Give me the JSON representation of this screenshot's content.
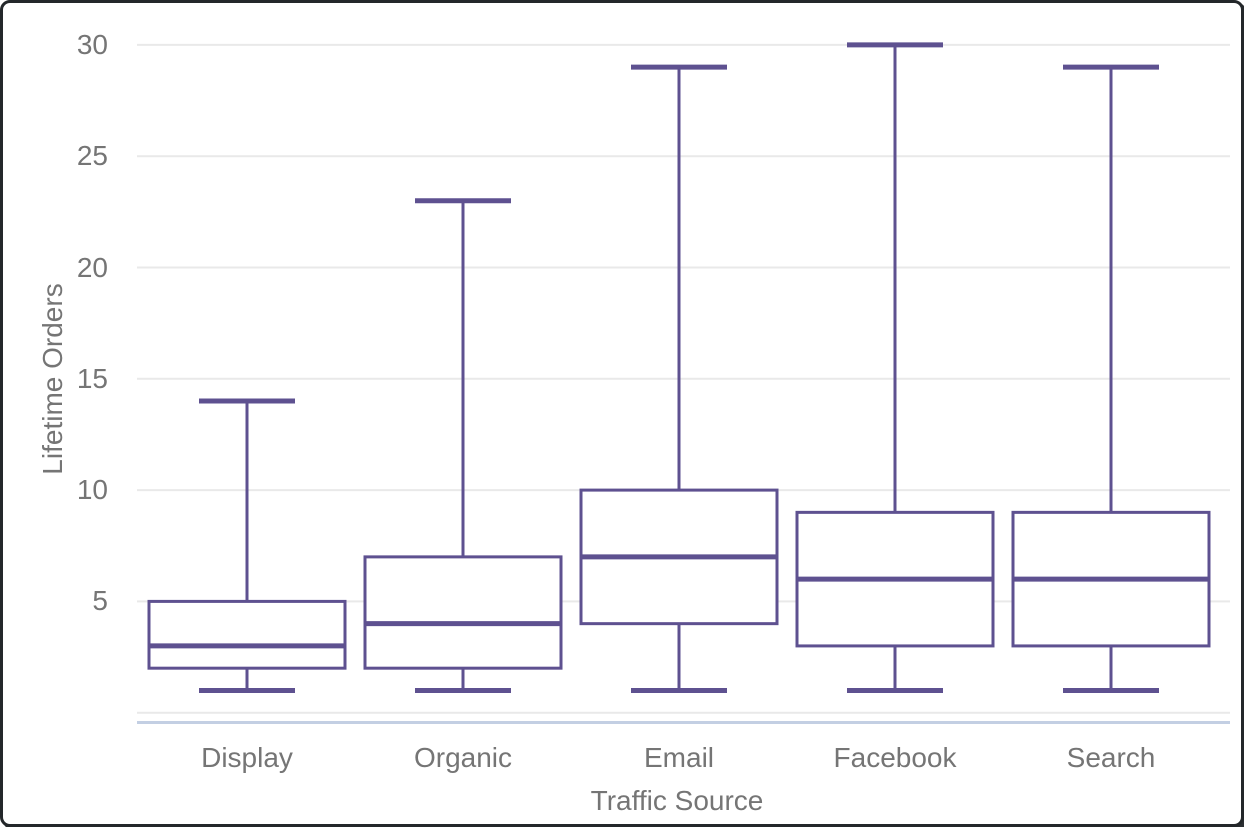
{
  "window": {
    "kind": "chart-screenshot-frame"
  },
  "chart_data": {
    "type": "boxplot",
    "title": "",
    "xlabel": "Traffic Source",
    "ylabel": "Lifetime Orders",
    "categories": [
      "Display",
      "Organic",
      "Email",
      "Facebook",
      "Search"
    ],
    "series": [
      {
        "name": "Display",
        "low": 1,
        "q1": 2,
        "median": 3,
        "q3": 5,
        "high": 14
      },
      {
        "name": "Organic",
        "low": 1,
        "q1": 2,
        "median": 4,
        "q3": 7,
        "high": 23
      },
      {
        "name": "Email",
        "low": 1,
        "q1": 4,
        "median": 7,
        "q3": 10,
        "high": 29
      },
      {
        "name": "Facebook",
        "low": 1,
        "q1": 3,
        "median": 6,
        "q3": 9,
        "high": 30
      },
      {
        "name": "Search",
        "low": 1,
        "q1": 3,
        "median": 6,
        "q3": 9,
        "high": 29
      }
    ],
    "yticks_labeled": [
      30,
      25,
      20,
      15,
      10,
      5
    ],
    "gridlines_at": [
      30,
      25,
      20,
      15,
      10,
      5,
      0
    ],
    "ylim": [
      0,
      31.2
    ],
    "grid": true,
    "legend": "none",
    "colors": {
      "box_stroke": "#5e5190",
      "box_fill": "#ffffff",
      "grid": "#e9e9e9",
      "axis_line": "#c3cfe3",
      "label_text": "#757575",
      "frame_border": "#23272a",
      "background": "#ffffff"
    }
  }
}
